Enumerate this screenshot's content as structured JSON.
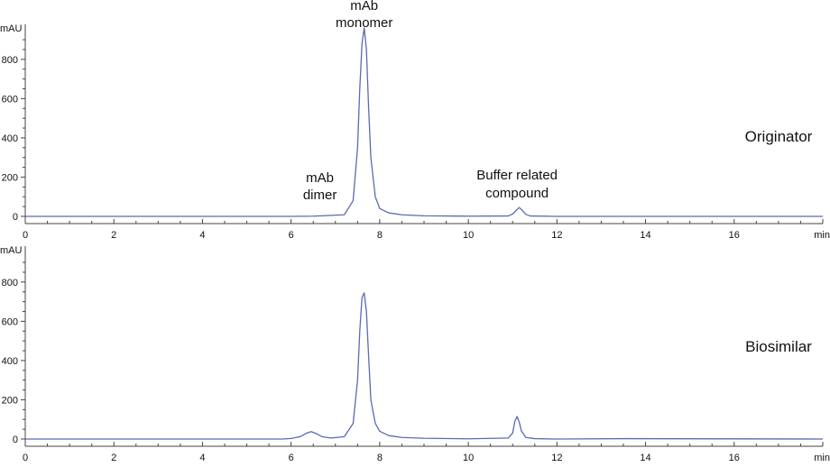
{
  "chart_data": [
    {
      "type": "line",
      "panel_label": "Originator",
      "y_unit": "mAU",
      "x_unit": "min",
      "xlim": [
        0,
        18
      ],
      "ylim": [
        -20,
        1000
      ],
      "x_ticks": [
        0,
        2,
        4,
        6,
        8,
        10,
        12,
        14,
        16
      ],
      "y_ticks": [
        0,
        200,
        400,
        600,
        800
      ],
      "grid": false,
      "line_color": "#5b6ab0",
      "series": [
        {
          "x": [
            0,
            6.0,
            6.5,
            6.7,
            6.9,
            7.2,
            7.4,
            7.5,
            7.55,
            7.6,
            7.65,
            7.7,
            7.75,
            7.8,
            7.9,
            8.0,
            8.2,
            8.5,
            9.0,
            10.0,
            10.9,
            11.0,
            11.1,
            11.15,
            11.2,
            11.3,
            11.4,
            12.0,
            18.0
          ],
          "y": [
            0,
            0,
            1,
            3,
            5,
            8,
            80,
            350,
            650,
            880,
            960,
            850,
            550,
            300,
            100,
            40,
            18,
            8,
            3,
            1,
            2,
            12,
            35,
            45,
            35,
            10,
            2,
            0,
            0
          ]
        }
      ],
      "annotations": [
        {
          "lines": [
            "mAb",
            "monomer"
          ],
          "x": 7.65
        },
        {
          "lines": [
            "mAb",
            "dimer"
          ],
          "x": 6.65
        },
        {
          "lines": [
            "Buffer related",
            "compound"
          ],
          "x": 11.1
        }
      ]
    },
    {
      "type": "line",
      "panel_label": "Biosimilar",
      "y_unit": "mAU",
      "x_unit": "min",
      "xlim": [
        0,
        18
      ],
      "ylim": [
        -20,
        1000
      ],
      "x_ticks": [
        0,
        2,
        4,
        6,
        8,
        10,
        12,
        14,
        16
      ],
      "y_ticks": [
        0,
        200,
        400,
        600,
        800
      ],
      "grid": false,
      "line_color": "#5b6ab0",
      "series": [
        {
          "x": [
            0,
            5.8,
            6.0,
            6.2,
            6.35,
            6.45,
            6.55,
            6.7,
            6.9,
            7.2,
            7.4,
            7.5,
            7.55,
            7.6,
            7.65,
            7.7,
            7.75,
            7.8,
            7.9,
            8.0,
            8.2,
            8.5,
            9.0,
            10.0,
            10.9,
            11.0,
            11.05,
            11.1,
            11.15,
            11.2,
            11.3,
            11.5,
            12.0,
            13.5,
            18.0
          ],
          "y": [
            0,
            0,
            3,
            12,
            30,
            38,
            30,
            12,
            5,
            12,
            80,
            300,
            550,
            720,
            745,
            650,
            420,
            200,
            80,
            40,
            18,
            8,
            4,
            1,
            5,
            30,
            90,
            115,
            85,
            40,
            8,
            2,
            0,
            2,
            0
          ]
        }
      ],
      "annotations": []
    }
  ]
}
